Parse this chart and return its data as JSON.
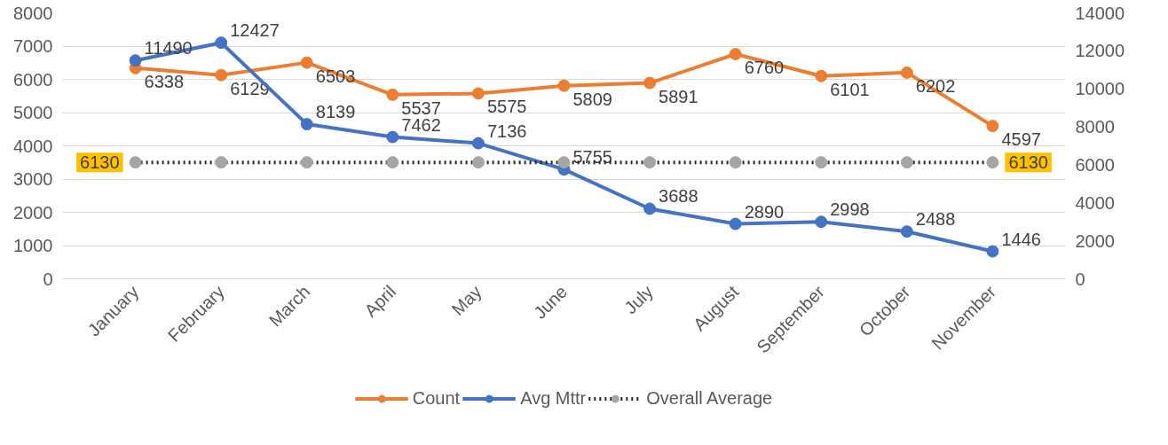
{
  "chart_data": {
    "type": "line",
    "categories": [
      "January",
      "February",
      "March",
      "April",
      "May",
      "June",
      "July",
      "August",
      "September",
      "October",
      "November"
    ],
    "ylim": [
      0,
      8000
    ],
    "yticks": [
      0,
      1000,
      2000,
      3000,
      4000,
      5000,
      6000,
      7000,
      8000
    ],
    "y2lim": [
      0,
      14000
    ],
    "y2ticks": [
      0,
      2000,
      4000,
      6000,
      8000,
      10000,
      12000,
      14000
    ],
    "grid": "y",
    "legend": "bottom",
    "marker": "circle",
    "series": [
      {
        "name": "Count",
        "color": "#ed7d31",
        "values": [
          6338,
          6129,
          6503,
          5537,
          5575,
          5809,
          5891,
          6760,
          6101,
          6202,
          4597
        ],
        "value_labels": [
          "6338",
          "6129",
          "6503",
          "5537",
          "5575",
          "5809",
          "5891",
          "6760",
          "6101",
          "6202",
          "4597"
        ]
      },
      {
        "name": "Avg Mttr",
        "color": "#4472c4",
        "axis": "y2",
        "values": [
          11490,
          12427,
          8139,
          7462,
          7136,
          5755,
          3688,
          2890,
          2998,
          2488,
          1446
        ],
        "value_labels": [
          "11490",
          "12427",
          "8139",
          "7462",
          "7136",
          "5755",
          "3688",
          "2890",
          "2998",
          "2488",
          "1446"
        ]
      },
      {
        "name": "Overall Average",
        "color": "#a5a5a5",
        "axis": "y2",
        "line_style": "dotted",
        "values": [
          6130,
          6130,
          6130,
          6130,
          6130,
          6130,
          6130,
          6130,
          6130,
          6130,
          6130
        ],
        "value_labels": [
          "6130",
          null,
          null,
          null,
          null,
          null,
          null,
          null,
          null,
          null,
          "6130"
        ]
      }
    ]
  }
}
